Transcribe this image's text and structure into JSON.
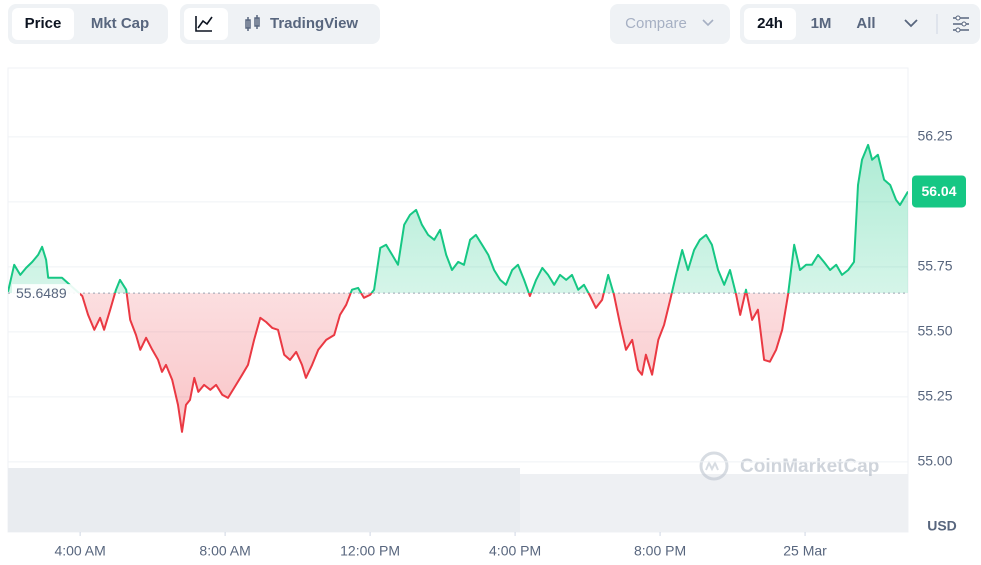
{
  "toolbar": {
    "views": [
      "Price",
      "Mkt Cap"
    ],
    "tradingview": "TradingView",
    "compare": "Compare",
    "ranges": [
      "24h",
      "1M",
      "All"
    ]
  },
  "watermark": "CoinMarketCap",
  "currency": "USD",
  "chart_data": {
    "type": "line",
    "up_color": "#16c784",
    "down_color": "#ea3943",
    "grid": true,
    "baseline": 55.6489,
    "current_price": 56.04,
    "xlim": [
      2.01,
      26.84
    ],
    "xticks": [
      {
        "value": 4,
        "label": "4:00 AM"
      },
      {
        "value": 8,
        "label": "8:00 AM"
      },
      {
        "value": 12,
        "label": "12:00 PM"
      },
      {
        "value": 16,
        "label": "4:00 PM"
      },
      {
        "value": 20,
        "label": "8:00 PM"
      },
      {
        "value": 24,
        "label": "25 Mar"
      }
    ],
    "ylim": [
      54.73,
      56.515
    ],
    "yticks": [
      {
        "value": 55,
        "label": "55.00"
      },
      55.25,
      {
        "value": 55.5,
        "label": "55.50"
      },
      55.75,
      {
        "value": 56,
        "label": "56.00"
      },
      56.25
    ],
    "x": [
      2.01,
      2.18,
      2.35,
      2.51,
      2.68,
      2.84,
      2.95,
      3.06,
      3.12,
      3.5,
      4.06,
      4.22,
      4.39,
      4.55,
      4.66,
      4.83,
      4.99,
      5.1,
      5.27,
      5.38,
      5.54,
      5.66,
      5.82,
      5.99,
      6.15,
      6.26,
      6.37,
      6.54,
      6.7,
      6.81,
      6.92,
      7.03,
      7.15,
      7.26,
      7.42,
      7.59,
      7.75,
      7.92,
      8.08,
      8.3,
      8.47,
      8.63,
      8.8,
      8.97,
      9.13,
      9.3,
      9.46,
      9.63,
      9.79,
      9.96,
      10.12,
      10.23,
      10.4,
      10.57,
      10.79,
      11.01,
      11.17,
      11.34,
      11.5,
      11.67,
      11.83,
      12.0,
      12.11,
      12.28,
      12.44,
      12.61,
      12.77,
      12.94,
      13.1,
      13.27,
      13.43,
      13.6,
      13.77,
      13.93,
      14.1,
      14.26,
      14.43,
      14.59,
      14.76,
      14.92,
      15.09,
      15.26,
      15.42,
      15.59,
      15.75,
      15.92,
      16.08,
      16.25,
      16.41,
      16.58,
      16.75,
      16.91,
      17.08,
      17.24,
      17.41,
      17.57,
      17.74,
      17.9,
      18.07,
      18.23,
      18.4,
      18.57,
      18.73,
      18.9,
      19.06,
      19.23,
      19.39,
      19.5,
      19.61,
      19.78,
      19.95,
      20.11,
      20.28,
      20.44,
      20.61,
      20.77,
      20.94,
      21.1,
      21.27,
      21.43,
      21.6,
      21.77,
      21.93,
      22.1,
      22.21,
      22.37,
      22.54,
      22.7,
      22.87,
      23.03,
      23.2,
      23.37,
      23.53,
      23.7,
      23.86,
      24.03,
      24.19,
      24.36,
      24.52,
      24.69,
      24.86,
      25.02,
      25.19,
      25.35,
      25.46,
      25.57,
      25.74,
      25.85,
      26.01,
      26.18,
      26.35,
      26.51,
      26.62,
      26.84
    ],
    "values": [
      55.654,
      55.758,
      55.719,
      55.746,
      55.769,
      55.796,
      55.827,
      55.777,
      55.708,
      55.708,
      55.638,
      55.565,
      55.508,
      55.554,
      55.508,
      55.585,
      55.662,
      55.7,
      55.662,
      55.546,
      55.488,
      55.431,
      55.477,
      55.431,
      55.392,
      55.346,
      55.373,
      55.315,
      55.219,
      55.115,
      55.219,
      55.238,
      55.323,
      55.269,
      55.296,
      55.277,
      55.296,
      55.258,
      55.246,
      55.296,
      55.335,
      55.373,
      55.469,
      55.554,
      55.538,
      55.515,
      55.508,
      55.412,
      55.392,
      55.423,
      55.373,
      55.323,
      55.373,
      55.431,
      55.469,
      55.488,
      55.565,
      55.604,
      55.662,
      55.669,
      55.631,
      55.642,
      55.662,
      55.823,
      55.835,
      55.796,
      55.758,
      55.912,
      55.95,
      55.969,
      55.912,
      55.873,
      55.854,
      55.892,
      55.796,
      55.738,
      55.769,
      55.758,
      55.854,
      55.873,
      55.835,
      55.796,
      55.738,
      55.7,
      55.681,
      55.738,
      55.758,
      55.7,
      55.638,
      55.7,
      55.746,
      55.719,
      55.681,
      55.719,
      55.7,
      55.719,
      55.662,
      55.681,
      55.638,
      55.592,
      55.623,
      55.719,
      55.642,
      55.527,
      55.431,
      55.469,
      55.354,
      55.335,
      55.412,
      55.335,
      55.469,
      55.527,
      55.623,
      55.719,
      55.815,
      55.738,
      55.815,
      55.854,
      55.873,
      55.835,
      55.738,
      55.681,
      55.738,
      55.642,
      55.565,
      55.662,
      55.546,
      55.585,
      55.392,
      55.385,
      55.431,
      55.508,
      55.642,
      55.835,
      55.738,
      55.758,
      55.758,
      55.796,
      55.769,
      55.738,
      55.758,
      55.719,
      55.738,
      55.769,
      56.065,
      56.162,
      56.219,
      56.162,
      56.181,
      56.085,
      56.065,
      56.008,
      55.988,
      56.04
    ]
  }
}
